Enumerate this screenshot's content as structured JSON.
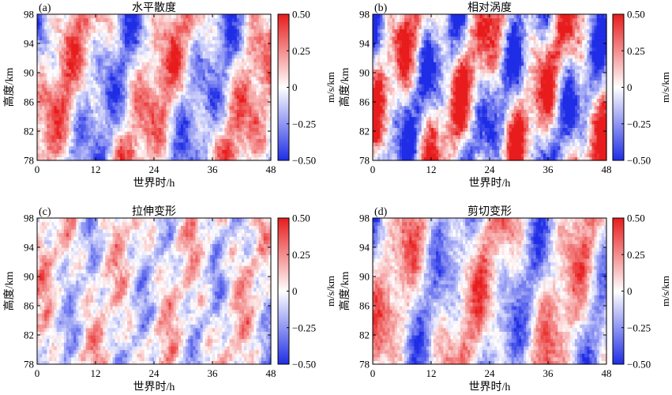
{
  "figure": {
    "colorbar": {
      "label": "m/s/km",
      "ticks": [
        {
          "value": 0.5,
          "text": "0.50"
        },
        {
          "value": 0.25,
          "text": "0.25"
        },
        {
          "value": 0,
          "text": "0"
        },
        {
          "value": -0.25,
          "text": "−0.25"
        },
        {
          "value": -0.5,
          "text": "−0.50"
        }
      ],
      "colors": {
        "negative": "#1f2de6",
        "zero": "#ffffff",
        "positive": "#e81c1c"
      }
    }
  },
  "chart_data": [
    {
      "type": "heatmap",
      "panel": "(a)",
      "title": "水平散度",
      "xlabel": "世界时/h",
      "ylabel": "高度/km",
      "x_ticks": [
        0,
        12,
        24,
        36,
        48
      ],
      "y_ticks": [
        78,
        82,
        86,
        90,
        94,
        98
      ],
      "xlim": [
        0,
        48
      ],
      "ylim": [
        78,
        98
      ],
      "clim": [
        -0.5,
        0.5
      ],
      "pattern": {
        "bands": [
          {
            "slope": -0.5,
            "phase": 0.0,
            "period": 20,
            "amp": 0.32
          },
          {
            "slope": 0.7,
            "phase": 1.2,
            "period": 10,
            "amp": 0.12
          },
          {
            "slope": -0.3,
            "phase": 2.1,
            "period": 7,
            "amp": 0.12
          }
        ],
        "noise": 0.18,
        "seed": 11
      }
    },
    {
      "type": "heatmap",
      "panel": "(b)",
      "title": "相对涡度",
      "xlabel": "世界时/h",
      "ylabel": "高度/km",
      "x_ticks": [
        0,
        12,
        24,
        36,
        48
      ],
      "y_ticks": [
        78,
        82,
        86,
        90,
        94,
        98
      ],
      "xlim": [
        0,
        48
      ],
      "ylim": [
        78,
        98
      ],
      "clim": [
        -0.5,
        0.5
      ],
      "pattern": {
        "bands": [
          {
            "slope": -0.6,
            "phase": 0.5,
            "period": 16,
            "amp": 0.42
          },
          {
            "slope": 0.4,
            "phase": 2.0,
            "period": 9,
            "amp": 0.2
          },
          {
            "slope": -0.2,
            "phase": 0.8,
            "period": 6,
            "amp": 0.14
          }
        ],
        "noise": 0.22,
        "seed": 23
      }
    },
    {
      "type": "heatmap",
      "panel": "(c)",
      "title": "拉伸变形",
      "xlabel": "世界时/h",
      "ylabel": "高度/km",
      "x_ticks": [
        0,
        12,
        24,
        36,
        48
      ],
      "y_ticks": [
        78,
        82,
        86,
        90,
        94,
        98
      ],
      "xlim": [
        0,
        48
      ],
      "ylim": [
        78,
        98
      ],
      "clim": [
        -0.5,
        0.5
      ],
      "pattern": {
        "bands": [
          {
            "slope": -0.4,
            "phase": 1.0,
            "period": 14,
            "amp": 0.16
          },
          {
            "slope": 0.3,
            "phase": 0.3,
            "period": 8,
            "amp": 0.12
          },
          {
            "slope": -0.9,
            "phase": 2.5,
            "period": 6,
            "amp": 0.1
          }
        ],
        "noise": 0.16,
        "seed": 37
      }
    },
    {
      "type": "heatmap",
      "panel": "(d)",
      "title": "剪切变形",
      "xlabel": "世界时/h",
      "ylabel": "高度/km",
      "x_ticks": [
        0,
        12,
        24,
        36,
        48
      ],
      "y_ticks": [
        78,
        82,
        86,
        90,
        94,
        98
      ],
      "xlim": [
        0,
        48
      ],
      "ylim": [
        78,
        98
      ],
      "clim": [
        -0.5,
        0.5
      ],
      "pattern": {
        "bands": [
          {
            "slope": -0.45,
            "phase": 0.2,
            "period": 18,
            "amp": 0.28
          },
          {
            "slope": 0.5,
            "phase": 1.7,
            "period": 11,
            "amp": 0.12
          },
          {
            "slope": -0.25,
            "phase": 0.9,
            "period": 7,
            "amp": 0.1
          }
        ],
        "noise": 0.17,
        "seed": 53
      }
    }
  ]
}
